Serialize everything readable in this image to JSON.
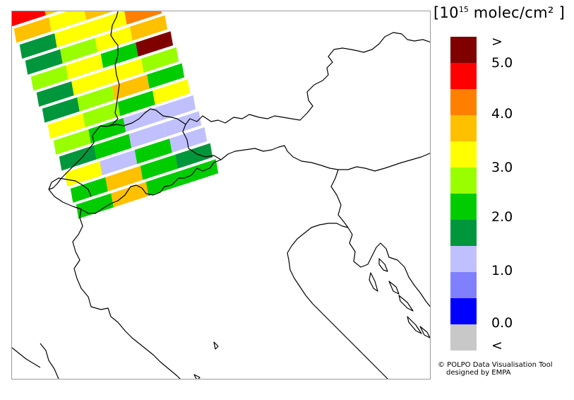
{
  "colorbar": {
    "unit_prefix": "[10",
    "unit_exponent": "15",
    "unit_suffix": " molec/cm² ]",
    "colors": [
      "#800000",
      "#ff0000",
      "#ff8000",
      "#ffc000",
      "#ffff00",
      "#99ff00",
      "#00cc00",
      "#00963c",
      "#c0c0ff",
      "#8080ff",
      "#0000ff",
      "#c8c8c8"
    ],
    "labels": [
      ">",
      "5.0",
      "4.0",
      "3.0",
      "2.0",
      "1.0",
      "0.0",
      "<"
    ]
  },
  "credit": {
    "line1": "© POLPO Data Visualisation Tool",
    "line2": "designed by EMPA"
  },
  "swath_colors": [
    [
      "#ff0000",
      "#ffc000",
      "#800000",
      "#800000"
    ],
    [
      "#ffc000",
      "#ffff00",
      "#ffc000",
      "#ffc000"
    ],
    [
      "#00963c",
      "#ffff00",
      "#ffff00",
      "#ff8000"
    ],
    [
      "#00963c",
      "#99ff00",
      "#ffff00",
      "#ffc000"
    ],
    [
      "#99ff00",
      "#ffff00",
      "#00cc00",
      "#800000"
    ],
    [
      "#00963c",
      "#ffff00",
      "#ffff00",
      "#99ff00"
    ],
    [
      "#00963c",
      "#99ff00",
      "#ffc000",
      "#00cc00"
    ],
    [
      "#ffff00",
      "#99ff00",
      "#00cc00",
      "#ffff00"
    ],
    [
      "#99ff00",
      "#00cc00",
      "#c0c0ff",
      "#c0c0ff"
    ],
    [
      "#00963c",
      "#00cc00",
      "#c0c0ff",
      "#c0c0ff"
    ],
    [
      "#ffff00",
      "#c0c0ff",
      "#00cc00",
      "#c0c0ff"
    ],
    [
      "#00cc00",
      "#ffc000",
      "#00cc00",
      "#00963c"
    ],
    [
      "#00cc00",
      "#ffc000",
      "#00cc00",
      "#00cc00"
    ]
  ]
}
